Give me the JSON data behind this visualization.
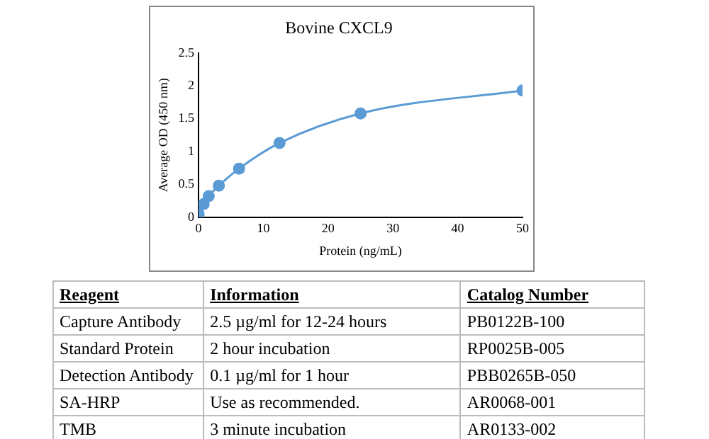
{
  "chart_data": [
    {
      "type": "line",
      "title": "Bovine CXCL9",
      "xlabel": "Protein (ng/mL)",
      "ylabel": "Average OD (450 nm)",
      "x": [
        0,
        0.78,
        1.56,
        3.125,
        6.25,
        12.5,
        25,
        50
      ],
      "series": [
        {
          "color": "#5b9bd5",
          "values": [
            0.05,
            0.2,
            0.32,
            0.48,
            0.74,
            1.13,
            1.58,
            1.93
          ]
        }
      ],
      "xlim": [
        0,
        50
      ],
      "xticks": [
        0,
        10,
        20,
        30,
        40,
        50
      ],
      "ylim": [
        0,
        2.5
      ],
      "yticks": [
        0,
        0.5,
        1,
        1.5,
        2,
        2.5
      ],
      "marker": "circle",
      "grid": false,
      "legend": false
    },
    {
      "type": "other",
      "annotations": [
        "Reagent",
        "Information",
        "Catalog Number",
        "Capture Antibody",
        "2.5 µg/ml for 12-24 hours",
        "PB0122B-100",
        "Standard Protein",
        "2 hour incubation",
        "RP0025B-005",
        "Detection Antibody",
        "0.1 µg/ml for 1 hour",
        "PBB0265B-050",
        "SA-HRP",
        "Use as recommended.",
        "AR0068-001",
        "TMB",
        "3 minute incubation",
        "AR0133-002"
      ]
    }
  ]
}
